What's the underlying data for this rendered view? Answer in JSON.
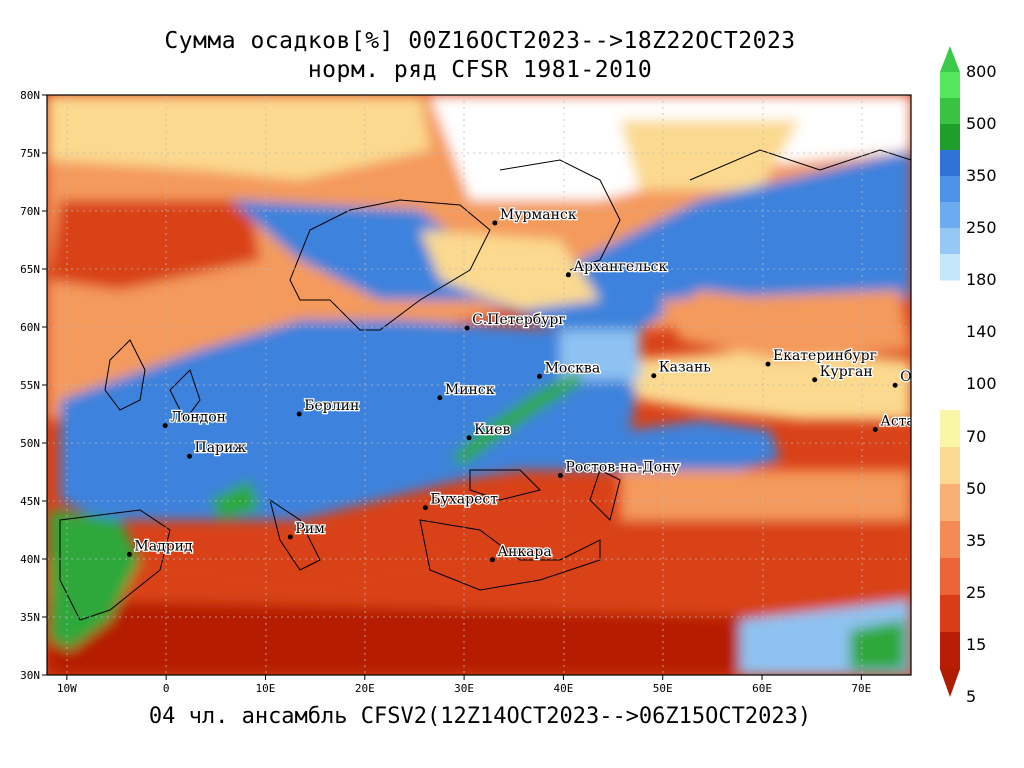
{
  "title_line1": "Сумма осадков[%] 00Z16OCT2023-->18Z22OCT2023",
  "title_line2": "норм. ряд CFSR 1981-2010",
  "subtitle": "04 чл. ансамбль CFSV2(12Z14OCT2023-->06Z15OCT2023)",
  "map": {
    "lon_range": [
      -12,
      75
    ],
    "lat_range": [
      30,
      80
    ],
    "lat_ticks": [
      "80N",
      "75N",
      "70N",
      "65N",
      "60N",
      "55N",
      "50N",
      "45N",
      "40N",
      "35N",
      "30N"
    ],
    "lon_ticks": [
      "10W",
      "0",
      "10E",
      "20E",
      "30E",
      "40E",
      "50E",
      "60E",
      "70E"
    ],
    "cities": [
      {
        "name": "Мурманск",
        "lon": 33.1,
        "lat": 68.97
      },
      {
        "name": "Архангельск",
        "lon": 40.5,
        "lat": 64.5
      },
      {
        "name": "С.Петербург",
        "lon": 30.3,
        "lat": 59.9
      },
      {
        "name": "Москва",
        "lon": 37.6,
        "lat": 55.75
      },
      {
        "name": "Казань",
        "lon": 49.1,
        "lat": 55.8
      },
      {
        "name": "Екатеринбург",
        "lon": 60.6,
        "lat": 56.8
      },
      {
        "name": "Курган",
        "lon": 65.3,
        "lat": 55.45
      },
      {
        "name": "Омск",
        "lon": 73.4,
        "lat": 54.98
      },
      {
        "name": "Астана",
        "lon": 71.4,
        "lat": 51.16
      },
      {
        "name": "Минск",
        "lon": 27.56,
        "lat": 53.9
      },
      {
        "name": "Берлин",
        "lon": 13.4,
        "lat": 52.5
      },
      {
        "name": "Лондон",
        "lon": -0.1,
        "lat": 51.5
      },
      {
        "name": "Париж",
        "lon": 2.35,
        "lat": 48.86
      },
      {
        "name": "Киев",
        "lon": 30.5,
        "lat": 50.45
      },
      {
        "name": "Ростов-на-Дону",
        "lon": 39.7,
        "lat": 47.2
      },
      {
        "name": "Бухарест",
        "lon": 26.1,
        "lat": 44.43
      },
      {
        "name": "Рим",
        "lon": 12.5,
        "lat": 41.9
      },
      {
        "name": "Мадрид",
        "lon": -3.7,
        "lat": 40.4
      },
      {
        "name": "Анкара",
        "lon": 32.85,
        "lat": 39.93
      }
    ]
  },
  "legend": {
    "arrow_top_color": "#3cc94a",
    "arrow_bottom_color": "#b01c00",
    "upper_labels": [
      "800",
      "500",
      "350",
      "250",
      "180",
      "140"
    ],
    "middle_label": "100",
    "lower_labels": [
      "70",
      "50",
      "35",
      "25",
      "15",
      "5"
    ],
    "upper_colors": [
      "#55e85e",
      "#39c343",
      "#1e9e2a",
      "#2f73d8",
      "#4a93e8",
      "#6dabf0",
      "#96c8f6",
      "#c4e8fb"
    ],
    "lower_colors": [
      "#faf6a8",
      "#fbd992",
      "#f8b074",
      "#f48a55",
      "#ec6436",
      "#d93b16",
      "#b81c05"
    ]
  },
  "color_scale": {
    "very_wet": "#2fa83a",
    "wet": "#3d82dc",
    "moist": "#8ec2f2",
    "normal": "#ffffff",
    "dryish": "#fbd98f",
    "dry": "#f49a5c",
    "very_dry": "#d94218",
    "extreme_dry": "#b51e05"
  }
}
